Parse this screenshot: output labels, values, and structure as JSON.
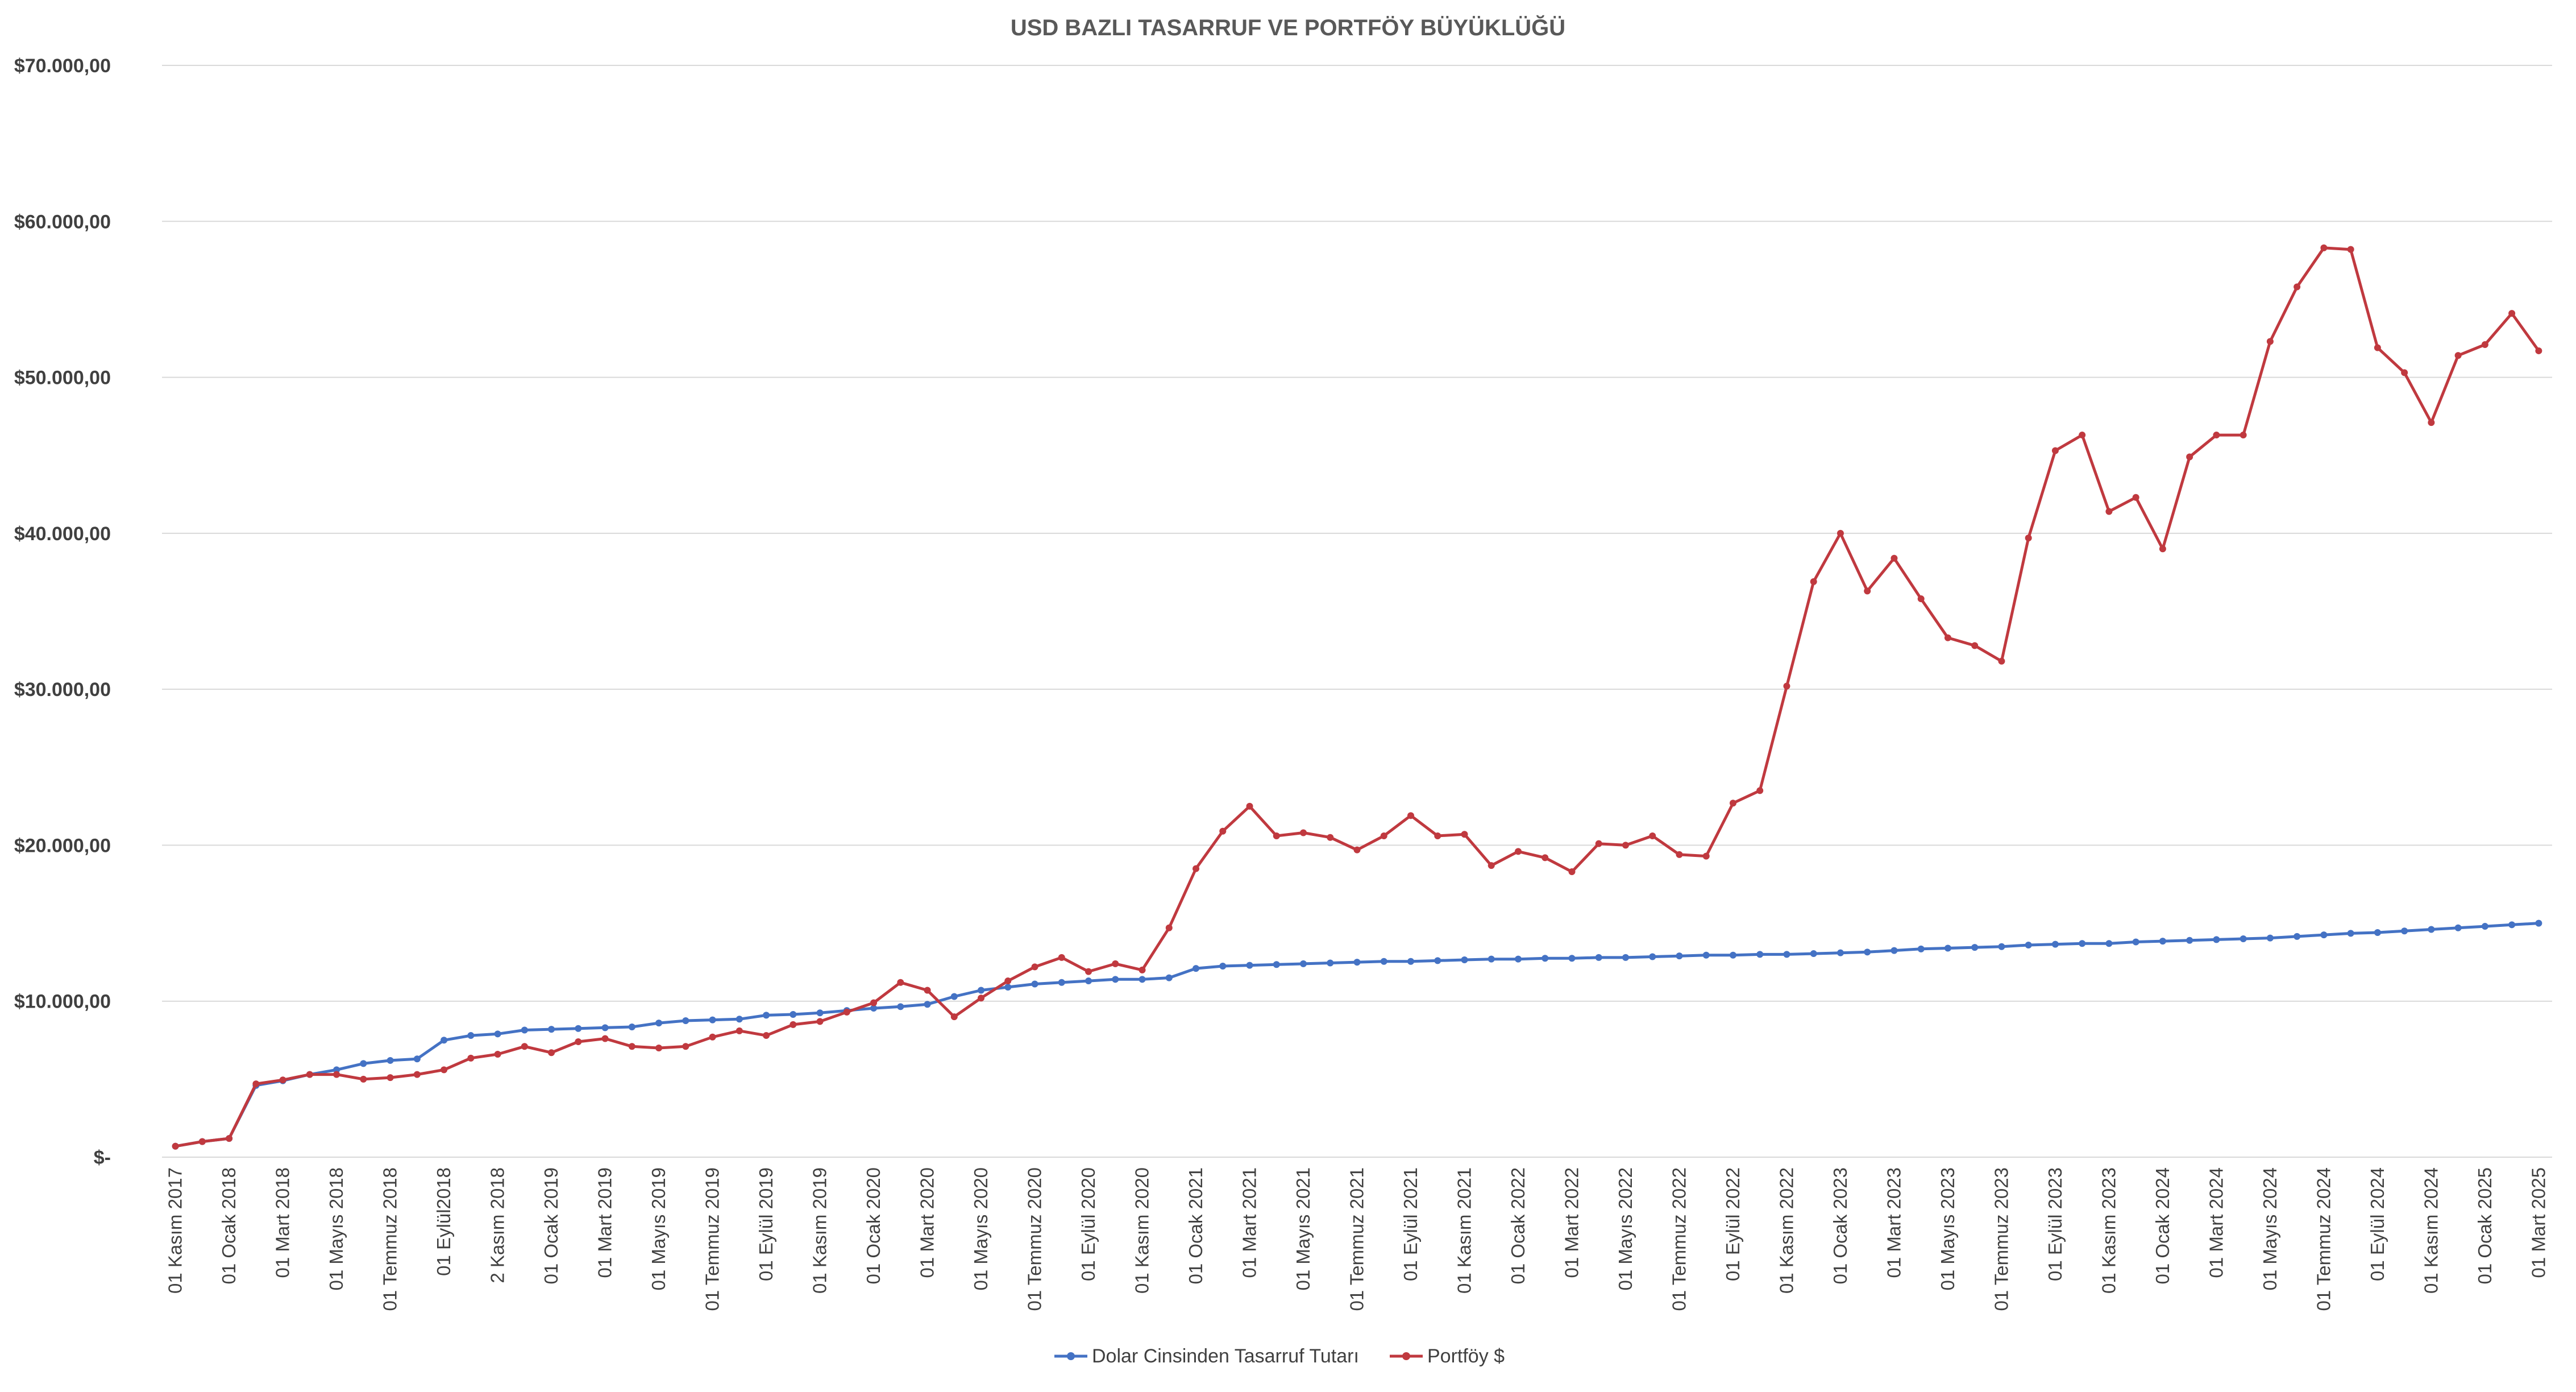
{
  "chart_data": {
    "type": "line",
    "title": "USD BAZLI TASARRUF VE PORTFÖY BÜYÜKLÜĞÜ",
    "xlabel": "",
    "ylabel": "",
    "ylim": [
      0,
      70000
    ],
    "y_ticks": [
      {
        "value": 0,
        "label": "$-"
      },
      {
        "value": 10000,
        "label": "$10.000,00"
      },
      {
        "value": 20000,
        "label": "$20.000,00"
      },
      {
        "value": 30000,
        "label": "$30.000,00"
      },
      {
        "value": 40000,
        "label": "$40.000,00"
      },
      {
        "value": 50000,
        "label": "$50.000,00"
      },
      {
        "value": 60000,
        "label": "$60.000,00"
      },
      {
        "value": 70000,
        "label": "$70.000,00"
      }
    ],
    "grid": true,
    "legend_position": "bottom",
    "x_tick_labels": [
      {
        "index": 0,
        "label": "01 Kasım 2017"
      },
      {
        "index": 2,
        "label": "01 Ocak 2018"
      },
      {
        "index": 4,
        "label": "01 Mart 2018"
      },
      {
        "index": 6,
        "label": "01 Mayıs 2018"
      },
      {
        "index": 8,
        "label": "01 Temmuz 2018"
      },
      {
        "index": 10,
        "label": "01 Eylül2018"
      },
      {
        "index": 12,
        "label": "2 Kasım 2018"
      },
      {
        "index": 14,
        "label": "01 Ocak 2019"
      },
      {
        "index": 16,
        "label": "01 Mart 2019"
      },
      {
        "index": 18,
        "label": "01 Mayıs 2019"
      },
      {
        "index": 20,
        "label": "01 Temmuz 2019"
      },
      {
        "index": 22,
        "label": "01 Eylül 2019"
      },
      {
        "index": 24,
        "label": "01 Kasım 2019"
      },
      {
        "index": 26,
        "label": "01 Ocak 2020"
      },
      {
        "index": 28,
        "label": "01 Mart 2020"
      },
      {
        "index": 30,
        "label": "01 Mayıs 2020"
      },
      {
        "index": 32,
        "label": "01 Temmuz 2020"
      },
      {
        "index": 34,
        "label": "01 Eylül 2020"
      },
      {
        "index": 36,
        "label": "01 Kasım 2020"
      },
      {
        "index": 38,
        "label": "01 Ocak 2021"
      },
      {
        "index": 40,
        "label": "01 Mart 2021"
      },
      {
        "index": 42,
        "label": "01 Mayıs 2021"
      },
      {
        "index": 44,
        "label": "01 Temmuz 2021"
      },
      {
        "index": 46,
        "label": "01 Eylül 2021"
      },
      {
        "index": 48,
        "label": "01 Kasım 2021"
      },
      {
        "index": 50,
        "label": "01 Ocak 2022"
      },
      {
        "index": 52,
        "label": "01 Mart 2022"
      },
      {
        "index": 54,
        "label": "01 Mayıs 2022"
      },
      {
        "index": 56,
        "label": "01 Temmuz 2022"
      },
      {
        "index": 58,
        "label": "01 Eylül 2022"
      },
      {
        "index": 60,
        "label": "01 Kasım 2022"
      },
      {
        "index": 62,
        "label": "01 Ocak 2023"
      },
      {
        "index": 64,
        "label": "01 Mart 2023"
      },
      {
        "index": 66,
        "label": "01 Mayıs 2023"
      },
      {
        "index": 68,
        "label": "01 Temmuz 2023"
      },
      {
        "index": 70,
        "label": "01 Eylül 2023"
      },
      {
        "index": 72,
        "label": "01 Kasım 2023"
      },
      {
        "index": 74,
        "label": "01 Ocak 2024"
      },
      {
        "index": 76,
        "label": "01 Mart 2024"
      },
      {
        "index": 78,
        "label": "01 Mayıs 2024"
      },
      {
        "index": 80,
        "label": "01 Temmuz 2024"
      },
      {
        "index": 82,
        "label": "01 Eylül 2024"
      },
      {
        "index": 84,
        "label": "01 Kasım 2024"
      },
      {
        "index": 86,
        "label": "01 Ocak 2025"
      },
      {
        "index": 88,
        "label": "01 Mart 2025"
      }
    ],
    "series": [
      {
        "name": "Dolar Cinsinden Tasarruf Tutarı",
        "color": "#4472c4",
        "values": [
          700,
          1000,
          1200,
          4600,
          4900,
          5300,
          5600,
          6000,
          6200,
          6300,
          7500,
          7800,
          7900,
          8150,
          8200,
          8250,
          8300,
          8350,
          8600,
          8750,
          8800,
          8850,
          9100,
          9150,
          9250,
          9400,
          9550,
          9650,
          9800,
          10300,
          10700,
          10900,
          11100,
          11200,
          11300,
          11400,
          11400,
          11500,
          12100,
          12250,
          12300,
          12350,
          12400,
          12450,
          12500,
          12550,
          12550,
          12600,
          12650,
          12700,
          12700,
          12750,
          12750,
          12800,
          12800,
          12850,
          12900,
          12950,
          12950,
          13000,
          13000,
          13050,
          13100,
          13150,
          13250,
          13350,
          13400,
          13450,
          13500,
          13600,
          13650,
          13700,
          13700,
          13800,
          13850,
          13900,
          13950,
          14000,
          14050,
          14150,
          14250,
          14350,
          14400,
          14500,
          14600,
          14700,
          14800,
          14900,
          15000
        ]
      },
      {
        "name": "Portföy $",
        "color": "#c0393f",
        "values": [
          700,
          1000,
          1200,
          4700,
          4950,
          5300,
          5300,
          5000,
          5100,
          5300,
          5600,
          6350,
          6600,
          7100,
          6700,
          7400,
          7600,
          7100,
          7000,
          7100,
          7700,
          8100,
          7800,
          8500,
          8700,
          9300,
          9900,
          11200,
          10700,
          9000,
          10200,
          11300,
          12200,
          12800,
          11900,
          12400,
          12000,
          14700,
          18500,
          20900,
          22500,
          20600,
          20800,
          20500,
          19700,
          20600,
          21900,
          20600,
          20700,
          18700,
          19600,
          19200,
          18300,
          20100,
          20000,
          20600,
          19400,
          19300,
          22700,
          23500,
          30200,
          36900,
          40000,
          36300,
          38400,
          35800,
          33300,
          32800,
          31800,
          39700,
          45300,
          46300,
          41400,
          42300,
          39000,
          44900,
          46300,
          46300,
          52300,
          55800,
          58300,
          58200,
          51900,
          50300,
          47100,
          51400,
          52100,
          54100,
          51700
        ]
      }
    ]
  }
}
